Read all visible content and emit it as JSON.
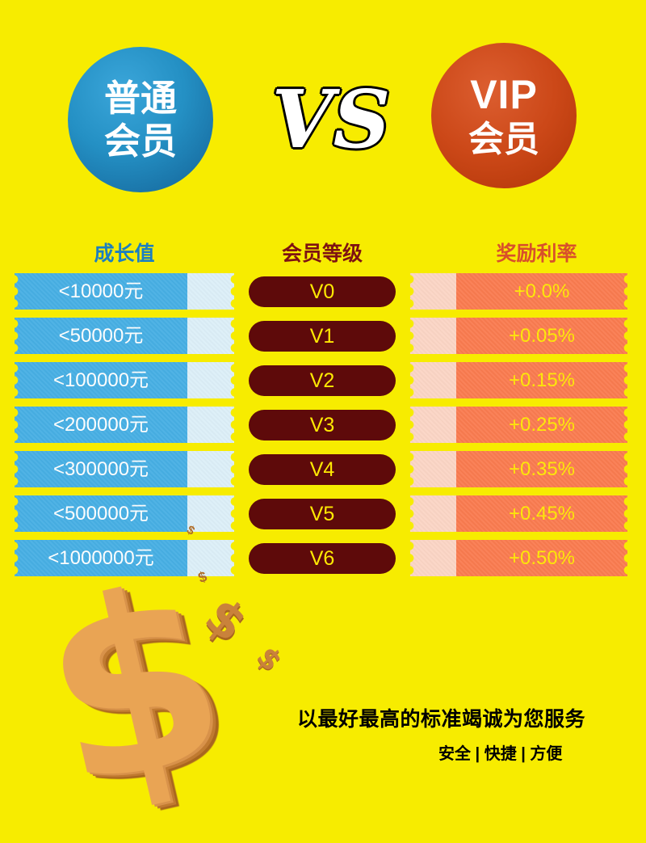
{
  "poster": {
    "left_badge": {
      "line1": "普通",
      "line2": "会员"
    },
    "vs_label": "VS",
    "right_badge": {
      "line1": "VIP",
      "line2": "会员"
    }
  },
  "table": {
    "headers": {
      "growth": "成长值",
      "level": "会员等级",
      "rate": "奖励利率"
    },
    "rows": [
      {
        "growth": "<10000元",
        "level": "V0",
        "rate": "+0.0%"
      },
      {
        "growth": "<50000元",
        "level": "V1",
        "rate": "+0.05%"
      },
      {
        "growth": "<100000元",
        "level": "V2",
        "rate": "+0.15%"
      },
      {
        "growth": "<200000元",
        "level": "V3",
        "rate": "+0.25%"
      },
      {
        "growth": "<300000元",
        "level": "V4",
        "rate": "+0.35%"
      },
      {
        "growth": "<500000元",
        "level": "V5",
        "rate": "+0.45%"
      },
      {
        "growth": "<1000000元",
        "level": "V6",
        "rate": "+0.50%"
      }
    ]
  },
  "chart_data": {
    "type": "table",
    "title": "普通会员 VS VIP会员",
    "columns": [
      "成长值",
      "会员等级",
      "奖励利率"
    ],
    "rows": [
      [
        "<10000元",
        "V0",
        "+0.0%"
      ],
      [
        "<50000元",
        "V1",
        "+0.05%"
      ],
      [
        "<100000元",
        "V2",
        "+0.15%"
      ],
      [
        "<200000元",
        "V3",
        "+0.25%"
      ],
      [
        "<300000元",
        "V4",
        "+0.35%"
      ],
      [
        "<500000元",
        "V5",
        "+0.45%"
      ],
      [
        "<1000000元",
        "V6",
        "+0.50%"
      ]
    ]
  },
  "footer": {
    "slogan": "以最好最高的标准竭诚为您服务",
    "tagline": "安全 | 快捷 | 方便"
  },
  "decor": {
    "dollar": "$"
  },
  "colors": {
    "background": "#F7EC00",
    "regular_circle_blue": "#1E7CAD",
    "vip_circle_red": "#C23E10",
    "growth_bar_blue": "#47AFE4",
    "growth_stub_light_blue": "#DCEFF8",
    "level_pill_maroon": "#5E0A0A",
    "rate_stub_pink": "#FBD5C5",
    "rate_bar_orange": "#FA7B50",
    "value_text_yellow": "#FFE903",
    "header_growth_blue": "#1B7FC0",
    "header_level_maroon": "#7E1212",
    "header_rate_red": "#D8502B",
    "dollar_gold": "#E9A454"
  }
}
